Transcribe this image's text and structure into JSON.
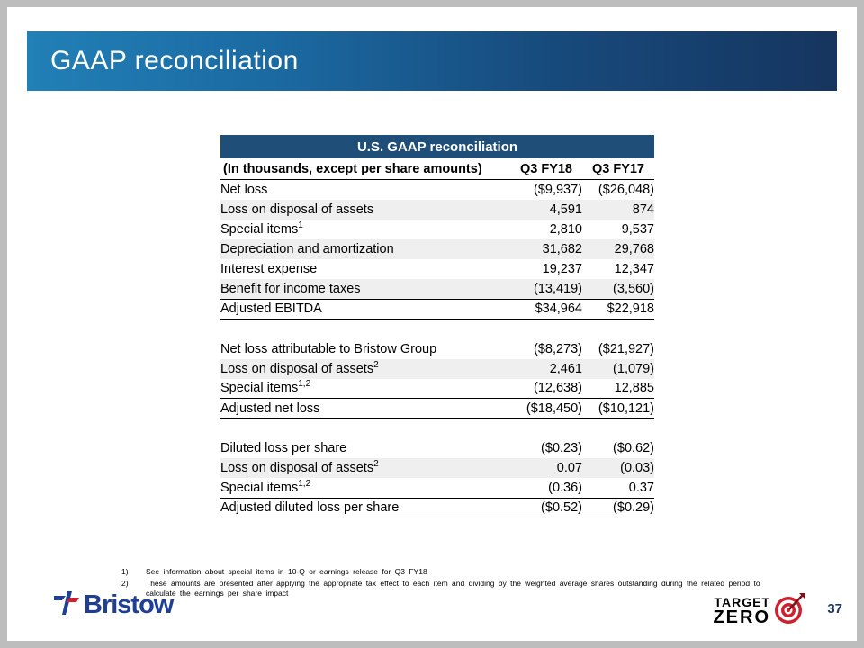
{
  "header": {
    "title": "GAAP reconciliation"
  },
  "table": {
    "title": "U.S. GAAP reconciliation",
    "caption": "(In thousands, except per share amounts)",
    "columns": [
      "Q3 FY18",
      "Q3 FY17"
    ],
    "sections": [
      {
        "rows": [
          {
            "label": "Net loss",
            "sup": "",
            "q3fy18": "($9,937)",
            "q3fy17": "($26,048)"
          },
          {
            "label": "Loss on disposal of assets",
            "sup": "",
            "q3fy18": "4,591",
            "q3fy17": "874"
          },
          {
            "label": "Special items",
            "sup": "1",
            "q3fy18": "2,810",
            "q3fy17": "9,537"
          },
          {
            "label": "Depreciation and amortization",
            "sup": "",
            "q3fy18": "31,682",
            "q3fy17": "29,768"
          },
          {
            "label": "Interest expense",
            "sup": "",
            "q3fy18": "19,237",
            "q3fy17": "12,347"
          },
          {
            "label": "Benefit for income taxes",
            "sup": "",
            "q3fy18": "(13,419)",
            "q3fy17": "(3,560)"
          },
          {
            "label": "Adjusted EBITDA",
            "sup": "",
            "q3fy18": "$34,964",
            "q3fy17": "$22,918",
            "total": true
          }
        ]
      },
      {
        "rows": [
          {
            "label": "Net loss attributable to Bristow Group",
            "sup": "",
            "q3fy18": "($8,273)",
            "q3fy17": "($21,927)"
          },
          {
            "label": "Loss on disposal of assets",
            "sup": "2",
            "q3fy18": "2,461",
            "q3fy17": "(1,079)"
          },
          {
            "label": "Special items",
            "sup": "1,2",
            "q3fy18": "(12,638)",
            "q3fy17": "12,885"
          },
          {
            "label": "Adjusted net loss",
            "sup": "",
            "q3fy18": "($18,450)",
            "q3fy17": "($10,121)",
            "total": true
          }
        ]
      },
      {
        "rows": [
          {
            "label": "Diluted loss per share",
            "sup": "",
            "q3fy18": "($0.23)",
            "q3fy17": "($0.62)"
          },
          {
            "label": "Loss on disposal of assets",
            "sup": "2",
            "q3fy18": "0.07",
            "q3fy17": "(0.03)"
          },
          {
            "label": "Special items",
            "sup": "1,2",
            "q3fy18": "(0.36)",
            "q3fy17": "0.37"
          },
          {
            "label": "Adjusted diluted loss per share",
            "sup": "",
            "q3fy18": "($0.52)",
            "q3fy17": "($0.29)",
            "total": true
          }
        ]
      }
    ]
  },
  "footnotes": [
    {
      "num": "1)",
      "text": "See information about special items in 10-Q or earnings release for Q3 FY18"
    },
    {
      "num": "2)",
      "text": "These amounts are presented after applying the appropriate tax effect to each item and dividing by the weighted average shares outstanding during the related period to calculate the earnings per share impact"
    }
  ],
  "branding": {
    "bristow_wordmark": "Bristow",
    "target_zero_line1": "TARGET",
    "target_zero_line2": "ZERO",
    "page_number": "37"
  },
  "colors": {
    "header_gradient_start": "#2180b6",
    "header_gradient_end": "#16355f",
    "table_header_bg": "#1f4e79",
    "row_shade": "#efefef",
    "bristow_blue": "#1e3f94",
    "target_red": "#cf202f",
    "page_number_navy": "#1f3864"
  }
}
